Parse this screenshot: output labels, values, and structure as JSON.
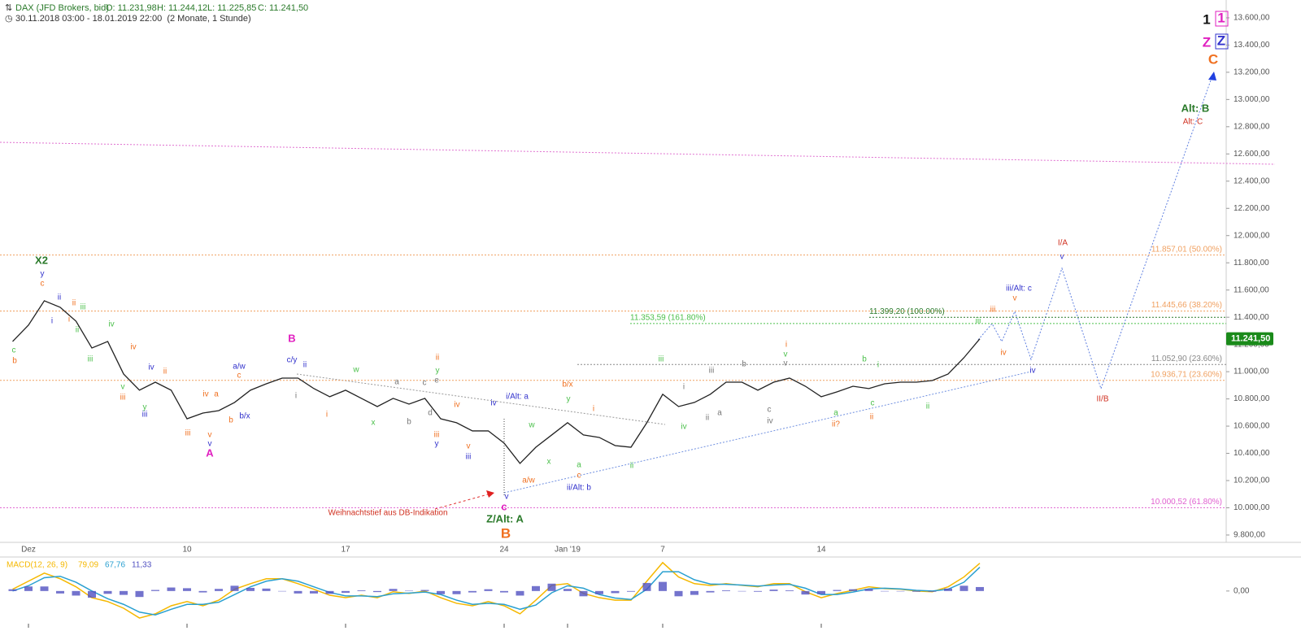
{
  "chart_data": [
    {
      "type": "line",
      "title": "DAX (JFD Brokers, bid)",
      "ohlc": [
        "O: 11.231,98",
        "H: 11.244,12",
        "L: 11.225,85",
        "C: 11.241,50"
      ],
      "subtitle": "30.11.2018 03:00 - 18.01.2019 22:00  (2 Monate, 1 Stunde)",
      "color": "#222",
      "categories": [
        null,
        "Dez",
        null,
        null,
        null,
        null,
        null,
        null,
        null,
        null,
        null,
        "10",
        null,
        null,
        null,
        null,
        null,
        null,
        null,
        null,
        null,
        "17",
        null,
        null,
        null,
        null,
        null,
        null,
        null,
        null,
        null,
        "24",
        null,
        null,
        null,
        "Jan '19",
        null,
        null,
        null,
        null,
        null,
        "7",
        null,
        null,
        null,
        null,
        null,
        null,
        null,
        null,
        null,
        "14",
        null,
        null,
        null,
        null,
        null,
        null,
        null,
        null,
        null,
        null
      ],
      "values": [
        11222,
        11342,
        11521,
        11473,
        11371,
        11174,
        11222,
        10983,
        10864,
        10923,
        10864,
        10654,
        10696,
        10714,
        10774,
        10864,
        10911,
        10953,
        10953,
        10876,
        10816,
        10864,
        10804,
        10744,
        10804,
        10762,
        10804,
        10654,
        10625,
        10565,
        10565,
        10475,
        10326,
        10445,
        10535,
        10625,
        10535,
        10517,
        10457,
        10445,
        10625,
        10834,
        10744,
        10774,
        10834,
        10923,
        10923,
        10864,
        10923,
        10953,
        10893,
        10816,
        10852,
        10893,
        10876,
        10911,
        10923,
        10923,
        10935,
        10983,
        11103,
        11241.5
      ],
      "last_price": {
        "value": 11241.5,
        "label": "11.241,50"
      },
      "ylim": [
        9746,
        13731
      ],
      "yticks": [
        {
          "value": 9800,
          "label": "9.800,00"
        },
        {
          "value": 10000,
          "label": "10.000,00"
        },
        {
          "value": 10200,
          "label": "10.200,00"
        },
        {
          "value": 10400,
          "label": "10.400,00"
        },
        {
          "value": 10600,
          "label": "10.600,00"
        },
        {
          "value": 10800,
          "label": "10.800,00"
        },
        {
          "value": 11000,
          "label": "11.000,00"
        },
        {
          "value": 11200,
          "label": "11.200,00"
        },
        {
          "value": 11400,
          "label": "11.400,00"
        },
        {
          "value": 11600,
          "label": "11.600,00"
        },
        {
          "value": 11800,
          "label": "11.800,00"
        },
        {
          "value": 12000,
          "label": "12.000,00"
        },
        {
          "value": 12200,
          "label": "12.200,00"
        },
        {
          "value": 12400,
          "label": "12.400,00"
        },
        {
          "value": 12600,
          "label": "12.600,00"
        },
        {
          "value": 12800,
          "label": "12.800,00"
        },
        {
          "value": 13000,
          "label": "13.000,00"
        },
        {
          "value": 13200,
          "label": "13.200,00"
        },
        {
          "value": 13400,
          "label": "13.400,00"
        },
        {
          "value": 13600,
          "label": "13.600,00"
        }
      ],
      "levels": [
        {
          "value": 11857.01,
          "label": "11.857,01 (50.00%)",
          "color": "#f0a060"
        },
        {
          "value": 11445.66,
          "label": "11.445,66 (38.20%)",
          "color": "#f0a060"
        },
        {
          "value": 11399.2,
          "label": "11.399,20 (100.00%)",
          "color": "#2a7a2a"
        },
        {
          "value": 11353.59,
          "label": "11.353,59 (161.80%)",
          "color": "#4cc04c"
        },
        {
          "value": 11052.9,
          "label": "11.052,90 (23.60%)",
          "color": "#888"
        },
        {
          "value": 10936.71,
          "label": "10.936,71 (23.60%)",
          "color": "#f0a060"
        },
        {
          "value": 10000.52,
          "label": "10.000,52 (61.80%)",
          "color": "#e060d0"
        }
      ],
      "annotations": [
        "X2",
        "y",
        "c",
        "ii",
        "i",
        "ii",
        "iii",
        "i",
        "ii",
        "iv",
        "iii",
        "c",
        "b",
        "iv",
        "v",
        "iii",
        "iv",
        "ii",
        "y",
        "iii",
        "iii",
        "iv",
        "a",
        "v",
        "v",
        "A",
        "b",
        "b/x",
        "a/w",
        "c",
        "B",
        "c/y",
        "ii",
        "i",
        "i",
        "w",
        "x",
        "a",
        "b",
        "c",
        "d",
        "ii",
        "y",
        "e",
        "iv",
        "iii",
        "y",
        "v",
        "iii",
        "iv",
        "i/Alt: a",
        "w",
        "x",
        "a/w",
        "v",
        "c",
        "Z/Alt: A",
        "B",
        "b/x",
        "y",
        "i",
        "a",
        "c",
        "ii/Alt: b",
        "ii",
        "Weihnachtstief aus DB-Indikation",
        "iii",
        "i",
        "iv",
        "ii",
        "a",
        "iii",
        "b",
        "c",
        "iv",
        "i",
        "v",
        "v",
        "a",
        "ii?",
        "b",
        "i",
        "c",
        "ii",
        "ii",
        "iii",
        "iii",
        "iv",
        "v",
        "iii/Alt: c",
        "iv",
        "I/A",
        "v",
        "II/B",
        "Alt: B",
        "Alt: C",
        "C",
        "1",
        "1",
        "Z",
        "Z"
      ]
    },
    {
      "type": "line",
      "title": "MACD(12, 26, 9)",
      "ylim": [
        -100,
        90
      ],
      "yticks": [
        {
          "value": 0,
          "label": "0,00"
        }
      ],
      "series": [
        {
          "color": "#f5b800",
          "current": {
            "value": 79.09,
            "label": "79,09"
          },
          "values": [
            5,
            28,
            51,
            35,
            12,
            -19,
            -30,
            -49,
            -77,
            -65,
            -42,
            -30,
            -42,
            -26,
            5,
            21,
            35,
            35,
            21,
            5,
            -12,
            -19,
            -12,
            -19,
            -2,
            -7,
            0,
            -19,
            -35,
            -42,
            -30,
            -42,
            -65,
            -26,
            16,
            21,
            -7,
            -19,
            -26,
            -26,
            28,
            81,
            40,
            21,
            16,
            21,
            16,
            12,
            21,
            21,
            -2,
            -19,
            -7,
            2,
            12,
            7,
            5,
            0,
            -2,
            12,
            40,
            79.09
          ]
        },
        {
          "color": "#2aa0d0",
          "current": {
            "value": 67.76,
            "label": "67,76"
          },
          "values": [
            0,
            15,
            38,
            42,
            25,
            0,
            -22,
            -38,
            -60,
            -68,
            -52,
            -38,
            -38,
            -32,
            -10,
            12,
            28,
            35,
            28,
            12,
            -4,
            -14,
            -14,
            -16,
            -8,
            -6,
            -3,
            -10,
            -26,
            -38,
            -35,
            -38,
            -52,
            -40,
            -5,
            15,
            8,
            -10,
            -20,
            -24,
            5,
            55,
            55,
            32,
            20,
            19,
            17,
            14,
            17,
            19,
            8,
            -10,
            -10,
            -3,
            6,
            8,
            6,
            2,
            0,
            5,
            25,
            67.76
          ]
        },
        {
          "color": "#5050c0",
          "type": "bar",
          "current": {
            "value": 11.33,
            "label": "11,33"
          },
          "values": [
            5,
            13,
            13,
            -7,
            -13,
            -19,
            -8,
            -11,
            -17,
            3,
            10,
            8,
            -4,
            6,
            15,
            9,
            7,
            0,
            -7,
            -7,
            -8,
            -5,
            2,
            -3,
            6,
            1,
            3,
            -9,
            -9,
            -4,
            5,
            -4,
            -13,
            14,
            21,
            6,
            -15,
            -9,
            -6,
            -2,
            23,
            26,
            -15,
            -11,
            -4,
            2,
            -1,
            -2,
            4,
            2,
            -10,
            -9,
            3,
            5,
            6,
            -1,
            -1,
            -2,
            -2,
            7,
            15,
            11.33
          ]
        }
      ]
    }
  ]
}
